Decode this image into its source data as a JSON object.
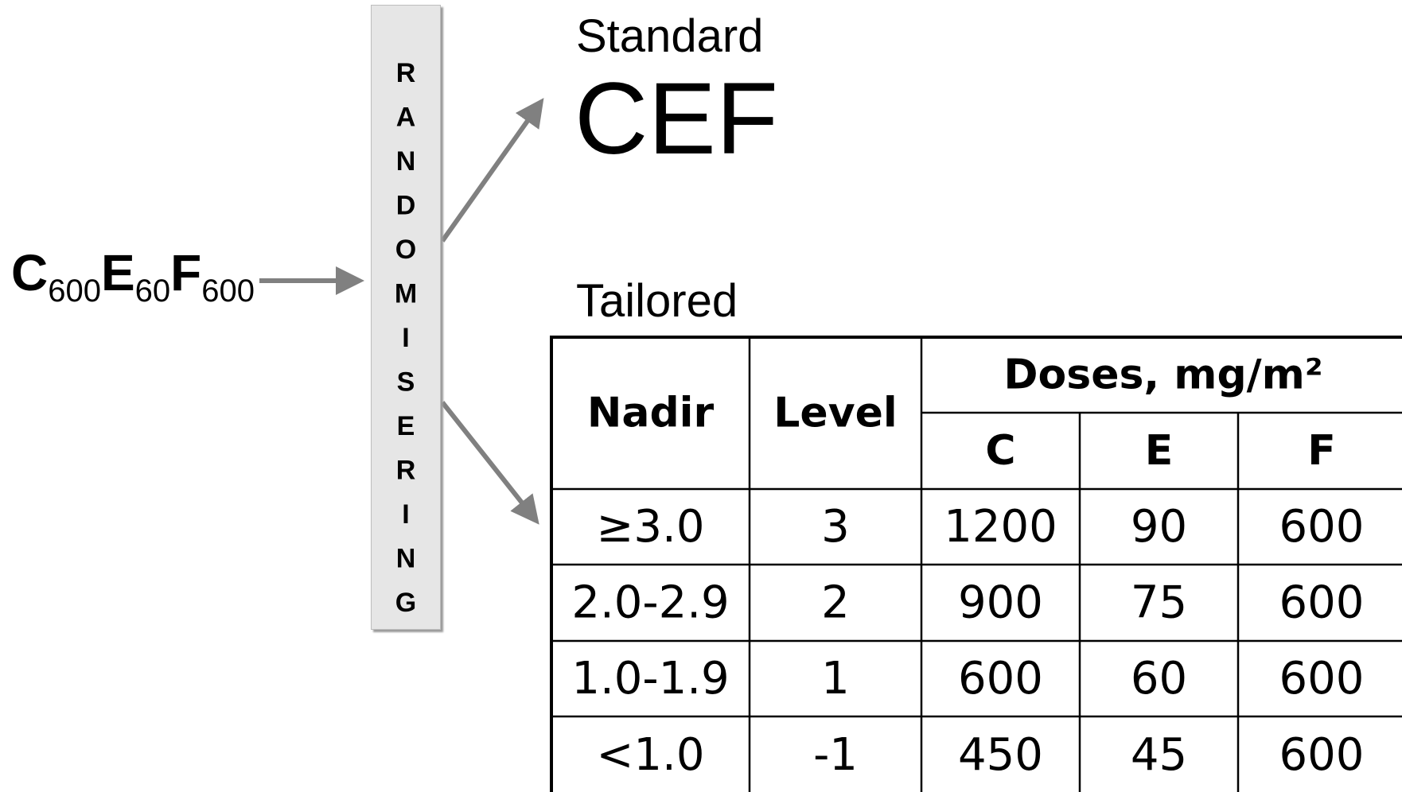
{
  "input": {
    "parts": [
      "C",
      "600",
      "E",
      "60",
      "F",
      "600"
    ]
  },
  "randomization": "RANDOMISERING",
  "standard": {
    "label": "Standard",
    "regimen": "CEF"
  },
  "tailored": {
    "label": "Tailored",
    "table": {
      "header": [
        "Nadir",
        "Level"
      ],
      "dose_header": "Doses, mg/m²",
      "drugs": [
        "C",
        "E",
        "F"
      ],
      "rows": [
        [
          "≥3.0",
          "3",
          "1200",
          "90",
          "600"
        ],
        [
          "2.0-2.9",
          "2",
          "900",
          "75",
          "600"
        ],
        [
          "1.0-1.9",
          "1",
          "600",
          "60",
          "600"
        ],
        [
          "<1.0",
          "-1",
          "450",
          "45",
          "600"
        ]
      ]
    }
  }
}
